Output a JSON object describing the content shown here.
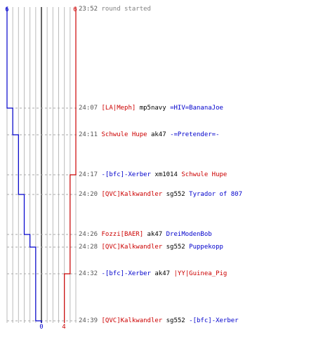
{
  "scale": {
    "left_start": "6",
    "right_start": "6",
    "left_end": "0",
    "right_end": "4"
  },
  "events": [
    {
      "time": "23:52",
      "message": "round started"
    },
    {
      "time": "24:07",
      "killer": "[LA|Meph]",
      "killer_team": "red",
      "weapon": "mp5navy",
      "victim": "=HIV=BananaJoe",
      "victim_team": "blue"
    },
    {
      "time": "24:11",
      "killer": "Schwule Hupe",
      "killer_team": "red",
      "weapon": "ak47",
      "victim": "-=Pretender=-",
      "victim_team": "blue"
    },
    {
      "time": "24:17",
      "killer": "-[bfc]-Xerber",
      "killer_team": "blue",
      "weapon": "xm1014",
      "victim": "Schwule Hupe",
      "victim_team": "red"
    },
    {
      "time": "24:20",
      "killer": "[QVC]Kalkwandler",
      "killer_team": "red",
      "weapon": "sg552",
      "victim": "Tyrador of 807",
      "victim_team": "blue"
    },
    {
      "time": "24:26",
      "killer": "Fozzi[BAER]",
      "killer_team": "red",
      "weapon": "ak47",
      "victim": "DreiModenBob",
      "victim_team": "blue"
    },
    {
      "time": "24:28",
      "killer": "[QVC]Kalkwandler",
      "killer_team": "red",
      "weapon": "sg552",
      "victim": "Puppekopp",
      "victim_team": "blue"
    },
    {
      "time": "24:32",
      "killer": "-[bfc]-Xerber",
      "killer_team": "blue",
      "weapon": "ak47",
      "victim": "|YY|Guinea_Pig",
      "victim_team": "red"
    },
    {
      "time": "24:39",
      "killer": "[QVC]Kalkwandler",
      "killer_team": "red",
      "weapon": "sg552",
      "victim": "-[bfc]-Xerber",
      "victim_team": "blue"
    }
  ],
  "colors": {
    "red_team": "#cc0000",
    "blue_team": "#0000cc",
    "grid": "#bbbbbb",
    "center_line": "#666666",
    "dashed": "#aaaaaa"
  },
  "chart_data": {
    "type": "line",
    "series": [
      {
        "values": [
          6,
          5,
          4,
          4,
          3,
          2,
          1,
          1,
          0
        ]
      },
      {
        "values": [
          6,
          6,
          6,
          5,
          5,
          5,
          5,
          4,
          4
        ]
      }
    ],
    "x": [
      "23:52",
      "24:07",
      "24:11",
      "24:17",
      "24:20",
      "24:26",
      "24:28",
      "24:32",
      "24:39"
    ],
    "ylim": [
      0,
      6
    ]
  }
}
